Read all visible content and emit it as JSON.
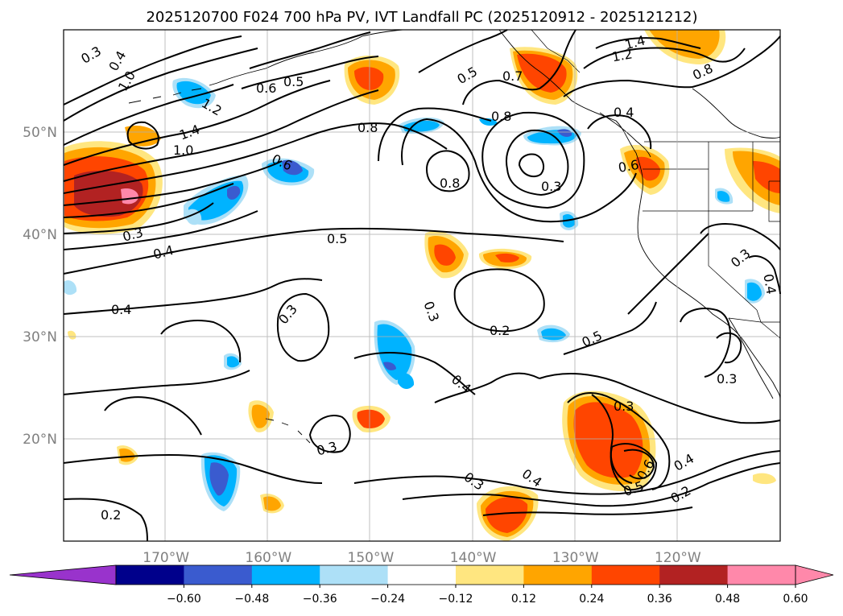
{
  "title": "2025120700 F024 700 hPa PV, IVT Landfall PC (2025120912 - 2025121212)",
  "axes": {
    "lon_ticks": [
      "170°W",
      "160°W",
      "150°W",
      "140°W",
      "130°W",
      "120°W"
    ],
    "lat_ticks": [
      "50°N",
      "40°N",
      "30°N",
      "20°N"
    ],
    "lon_range": [
      -180,
      -110
    ],
    "lat_range": [
      10,
      60
    ],
    "lon_values": [
      -170,
      -160,
      -150,
      -140,
      -130,
      -120
    ],
    "lat_values": [
      50,
      40,
      30,
      20
    ]
  },
  "colorbar": {
    "labels": [
      "−0.60",
      "−0.48",
      "−0.36",
      "−0.24",
      "−0.12",
      "0.12",
      "0.24",
      "0.36",
      "0.48",
      "0.60"
    ],
    "colors": {
      "under": "#9933cc",
      "b1": "#00008b",
      "b2": "#3a5bcf",
      "b3": "#00b3ff",
      "b4": "#ade0f7",
      "b5": "#ffffff",
      "b6": "#ffe680",
      "b7": "#ffa500",
      "b8": "#ff4500",
      "b9": "#b22222",
      "over": "#ff88aa"
    }
  },
  "contour_labels": [
    "0.3",
    "1.4",
    "1.2",
    "1.0",
    "0.8",
    "0.6",
    "0.5",
    "0.4",
    "0.2",
    "0.7"
  ],
  "pv_labels": {
    "l1": "0.3",
    "l2": "0.4",
    "l3": "1.0",
    "l4": "0.5",
    "l5": "0.6",
    "l6": "1.2",
    "l7": "1.4",
    "l8": "1.0",
    "l9": "0.3",
    "l10": "0.4",
    "l11": "0.4",
    "l12": "0.6",
    "l13": "0.8",
    "l14": "0.5",
    "l15": "0.7",
    "l16": "0.8",
    "l17": "1.4",
    "l18": "1.2",
    "l19": "0.8",
    "l20": "0.4",
    "l21": "0.6",
    "l22": "0.8",
    "l23": "0.3",
    "l24": "0.5",
    "l25": "0.3",
    "l26": "0.3",
    "l27": "0.2",
    "l28": "0.5",
    "l29": "0.4",
    "l30": "0.3",
    "l31": "0.3",
    "l32": "0.3",
    "l33": "0.6",
    "l34": "0.5",
    "l35": "0.4",
    "l36": "0.2",
    "l37": "0.3",
    "l38": "0.4",
    "l39": "0.2",
    "l40": "0.3",
    "l41": "0.4"
  }
}
